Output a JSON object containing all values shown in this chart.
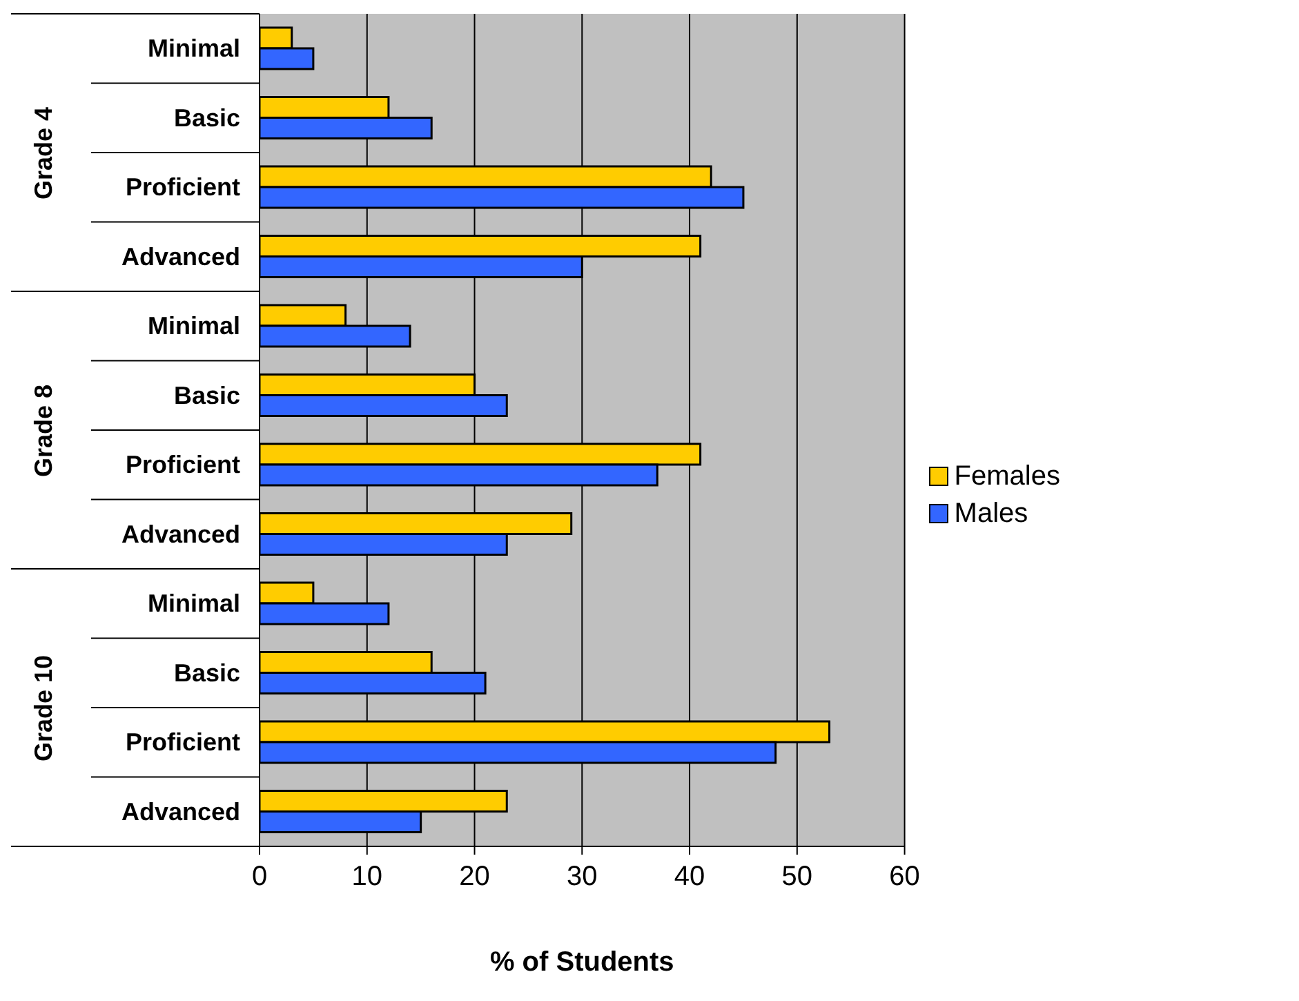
{
  "chart_data": {
    "type": "bar",
    "orientation": "horizontal",
    "xlabel": "% of Students",
    "categories": [
      "Minimal",
      "Basic",
      "Proficient",
      "Advanced",
      "Minimal",
      "Basic",
      "Proficient",
      "Advanced",
      "Minimal",
      "Basic",
      "Proficient",
      "Advanced"
    ],
    "annotations": [
      "Grade 4",
      "Grade 8",
      "Grade 10"
    ],
    "series": [
      {
        "name": "Females",
        "color": "#ffcc00",
        "values": [
          3,
          12,
          42,
          41,
          8,
          20,
          41,
          29,
          5,
          16,
          53,
          23
        ]
      },
      {
        "name": "Males",
        "color": "#3366ff",
        "values": [
          5,
          16,
          45,
          30,
          14,
          23,
          37,
          23,
          12,
          21,
          48,
          15
        ]
      }
    ],
    "xlim": [
      0,
      60
    ],
    "xticks": [
      0,
      10,
      20,
      30,
      40,
      50,
      60
    ],
    "grid": "x",
    "legend": "right"
  }
}
